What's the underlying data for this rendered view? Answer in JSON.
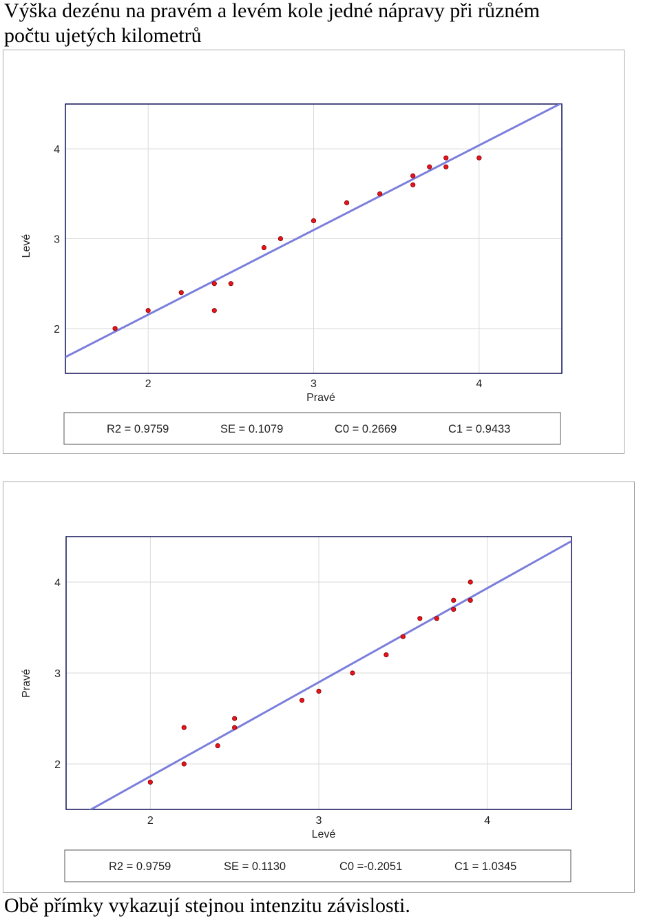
{
  "heading": {
    "line1": "Výška dezénu na pravém a levém kole jedné nápravy při různém",
    "line2": "počtu ujetých kilometrů"
  },
  "footer": "Obě přímky vykazují stejnou intenzitu závislosti.",
  "colors": {
    "point": "#e8141c",
    "point_outline": "#7a0000",
    "fit_line": "#7b7fdc",
    "grid": "#d9d9d9",
    "axes_frame": "#00004d"
  },
  "chart_data": [
    {
      "type": "scatter",
      "xlabel": "Pravé",
      "ylabel": "Levé",
      "xlim": [
        1.5,
        4.5
      ],
      "ylim": [
        1.5,
        4.5
      ],
      "xticks": [
        2,
        3,
        4
      ],
      "yticks": [
        2,
        3,
        4
      ],
      "grid": true,
      "points": [
        {
          "x": 1.8,
          "y": 2.0
        },
        {
          "x": 2.0,
          "y": 2.2
        },
        {
          "x": 2.2,
          "y": 2.4
        },
        {
          "x": 2.4,
          "y": 2.5
        },
        {
          "x": 2.4,
          "y": 2.2
        },
        {
          "x": 2.5,
          "y": 2.5
        },
        {
          "x": 2.7,
          "y": 2.9
        },
        {
          "x": 2.8,
          "y": 3.0
        },
        {
          "x": 3.0,
          "y": 3.2
        },
        {
          "x": 3.2,
          "y": 3.4
        },
        {
          "x": 3.4,
          "y": 3.5
        },
        {
          "x": 3.6,
          "y": 3.7
        },
        {
          "x": 3.6,
          "y": 3.6
        },
        {
          "x": 3.7,
          "y": 3.8
        },
        {
          "x": 3.8,
          "y": 3.9
        },
        {
          "x": 3.8,
          "y": 3.8
        },
        {
          "x": 4.0,
          "y": 3.9
        }
      ],
      "fit": {
        "intercept": 0.2669,
        "slope": 0.9433
      },
      "stats": [
        "R2 = 0.9759",
        "SE = 0.1079",
        "C0 = 0.2669",
        "C1 = 0.9433"
      ]
    },
    {
      "type": "scatter",
      "xlabel": "Levé",
      "ylabel": "Pravé",
      "xlim": [
        1.5,
        4.5
      ],
      "ylim": [
        1.5,
        4.5
      ],
      "xticks": [
        2,
        3,
        4
      ],
      "yticks": [
        2,
        3,
        4
      ],
      "grid": true,
      "points": [
        {
          "x": 2.0,
          "y": 1.8
        },
        {
          "x": 2.2,
          "y": 2.4
        },
        {
          "x": 2.2,
          "y": 2.0
        },
        {
          "x": 2.4,
          "y": 2.2
        },
        {
          "x": 2.5,
          "y": 2.5
        },
        {
          "x": 2.5,
          "y": 2.4
        },
        {
          "x": 2.9,
          "y": 2.7
        },
        {
          "x": 3.0,
          "y": 2.8
        },
        {
          "x": 3.2,
          "y": 3.0
        },
        {
          "x": 3.4,
          "y": 3.2
        },
        {
          "x": 3.5,
          "y": 3.4
        },
        {
          "x": 3.6,
          "y": 3.6
        },
        {
          "x": 3.7,
          "y": 3.6
        },
        {
          "x": 3.8,
          "y": 3.8
        },
        {
          "x": 3.8,
          "y": 3.7
        },
        {
          "x": 3.9,
          "y": 4.0
        },
        {
          "x": 3.9,
          "y": 3.8
        }
      ],
      "fit": {
        "intercept": -0.2051,
        "slope": 1.0345
      },
      "stats": [
        "R2 = 0.9759",
        "SE = 0.1130",
        "C0 =-0.2051",
        "C1 = 1.0345"
      ]
    }
  ]
}
